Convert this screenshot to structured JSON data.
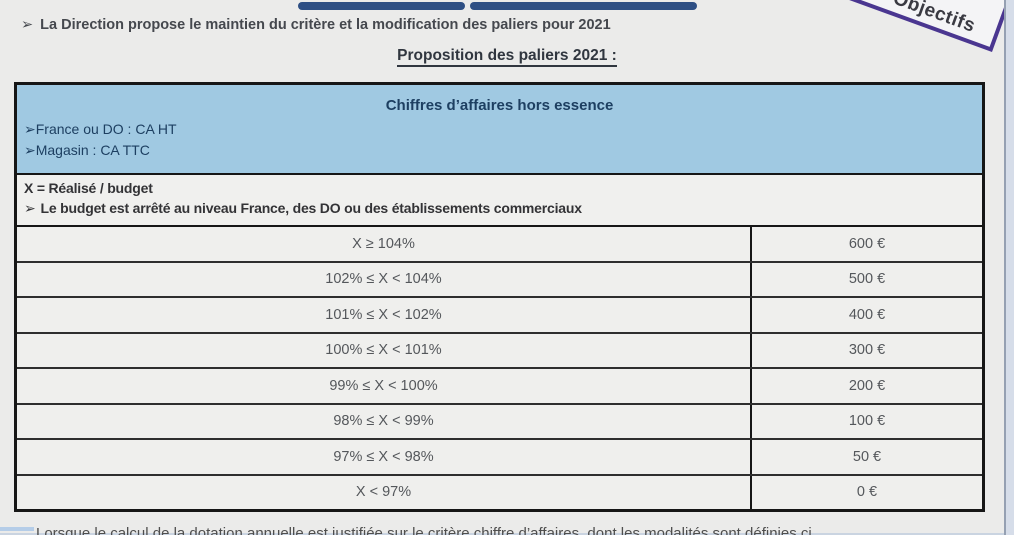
{
  "slide": {
    "intro_bullet": {
      "marker": "➢",
      "text": "La Direction propose le maintien du critère et la modification des paliers pour 2021"
    },
    "section_title": "Proposition des paliers 2021 :",
    "ribbon_label": "Objectifs",
    "bottom_cutoff_line": "Lorsque le calcul de la dotation annuelle est justifiée sur le critère chiffre d’affaires, dont les modalités sont définies ci"
  },
  "table": {
    "header": {
      "title": "Chiffres d’affaires hors essence",
      "bullets": [
        {
          "marker": "➢",
          "text": "France ou DO : CA HT"
        },
        {
          "marker": "➢",
          "text": "Magasin : CA TTC"
        }
      ]
    },
    "definition": {
      "line1": "X = Réalisé / budget",
      "line2_marker": "➢",
      "line2": "Le budget est arrêté au niveau France, des DO ou des établissements commerciaux"
    },
    "tiers": [
      {
        "range": "X ≥ 104%",
        "amount": "600 €"
      },
      {
        "range": "102% ≤ X < 104%",
        "amount": "500 €"
      },
      {
        "range": "101% ≤  X < 102%",
        "amount": "400 €"
      },
      {
        "range": "100% ≤ X < 101%",
        "amount": "300 €"
      },
      {
        "range": "99% ≤ X < 100%",
        "amount": "200 €"
      },
      {
        "range": "98% ≤ X < 99%",
        "amount": "100 €"
      },
      {
        "range": "97% ≤ X < 98%",
        "amount": "50 €"
      },
      {
        "range": "X < 97%",
        "amount": "0 €"
      }
    ]
  },
  "colors": {
    "page_bg": "#ebebea",
    "accent_navy": "#2e4f84",
    "table_header_fill": "#a0c9e2",
    "table_header_text": "#1d3f61",
    "table_border": "#161616",
    "ribbon_border": "#4a3690",
    "body_text": "#45484e",
    "tier_text": "#54575b",
    "edge_strip": "#d6dde9"
  }
}
